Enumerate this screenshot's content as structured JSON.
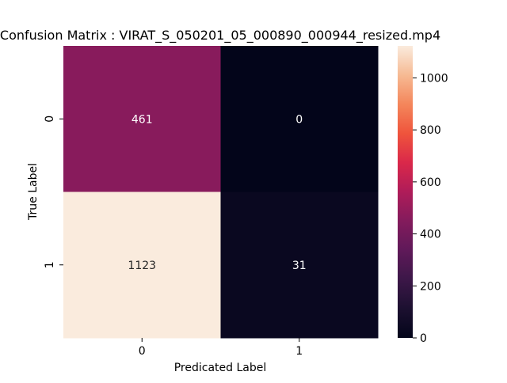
{
  "chart_data": {
    "type": "heatmap",
    "title": "Confusion Matrix : VIRAT_S_050201_05_000890_000944_resized.mp4",
    "xlabel": "Predicated Label",
    "ylabel": "True Label",
    "x_categories": [
      "0",
      "1"
    ],
    "y_categories": [
      "0",
      "1"
    ],
    "values": [
      [
        461,
        0
      ],
      [
        1123,
        31
      ]
    ],
    "colormap": "rocket",
    "colorbar": {
      "min": 0,
      "max": 1123,
      "ticks": [
        0,
        200,
        400,
        600,
        800,
        1000
      ]
    },
    "grid": false,
    "legend": "none"
  }
}
